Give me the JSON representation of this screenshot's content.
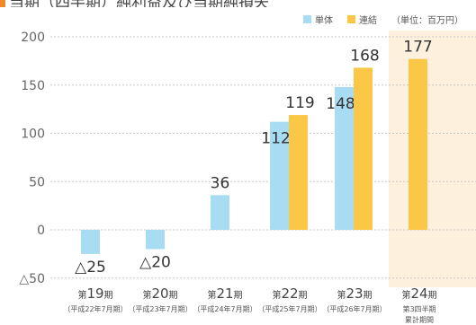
{
  "header": {
    "partial_title": "当期（四半期）純利益及び当期純損失"
  },
  "legend": {
    "unit": "（単位：百万円）"
  },
  "colors": {
    "single": "#a8dcf2",
    "consolidated": "#fbc746",
    "highlight_bg": "#fdf0dc",
    "axis_text": "#666666",
    "gridline": "#c8c8c8"
  },
  "chart_data": {
    "type": "bar",
    "title": "",
    "xlabel": "",
    "ylabel": "",
    "ylim": [
      -50,
      200
    ],
    "yticks": [
      -50,
      0,
      50,
      100,
      150,
      200
    ],
    "ytick_labels": [
      "△50",
      "0",
      "50",
      "100",
      "150",
      "200"
    ],
    "grid": true,
    "legend_position": "top-right",
    "categories": [
      {
        "main_prefix": "第",
        "main_number": "19",
        "main_suffix": "期",
        "sub": "（平成22年7月期）"
      },
      {
        "main_prefix": "第",
        "main_number": "20",
        "main_suffix": "期",
        "sub": "（平成23年7月期）"
      },
      {
        "main_prefix": "第",
        "main_number": "21",
        "main_suffix": "期",
        "sub": "（平成24年7月期）"
      },
      {
        "main_prefix": "第",
        "main_number": "22",
        "main_suffix": "期",
        "sub": "（平成25年7月期）"
      },
      {
        "main_prefix": "第",
        "main_number": "23",
        "main_suffix": "期",
        "sub": "（平成26年7月期）"
      },
      {
        "main_prefix": "第",
        "main_number": "24",
        "main_suffix": "期",
        "sub": "第3四半期",
        "sub2": "累計期間"
      }
    ],
    "series": [
      {
        "name": "単体",
        "values": [
          -25,
          -20,
          36,
          112,
          148,
          null
        ]
      },
      {
        "name": "連結",
        "values": [
          null,
          null,
          null,
          119,
          168,
          177
        ]
      }
    ],
    "data_labels": [
      "△25",
      "△20",
      "36",
      "112",
      "148",
      "119",
      "168",
      "177"
    ]
  }
}
